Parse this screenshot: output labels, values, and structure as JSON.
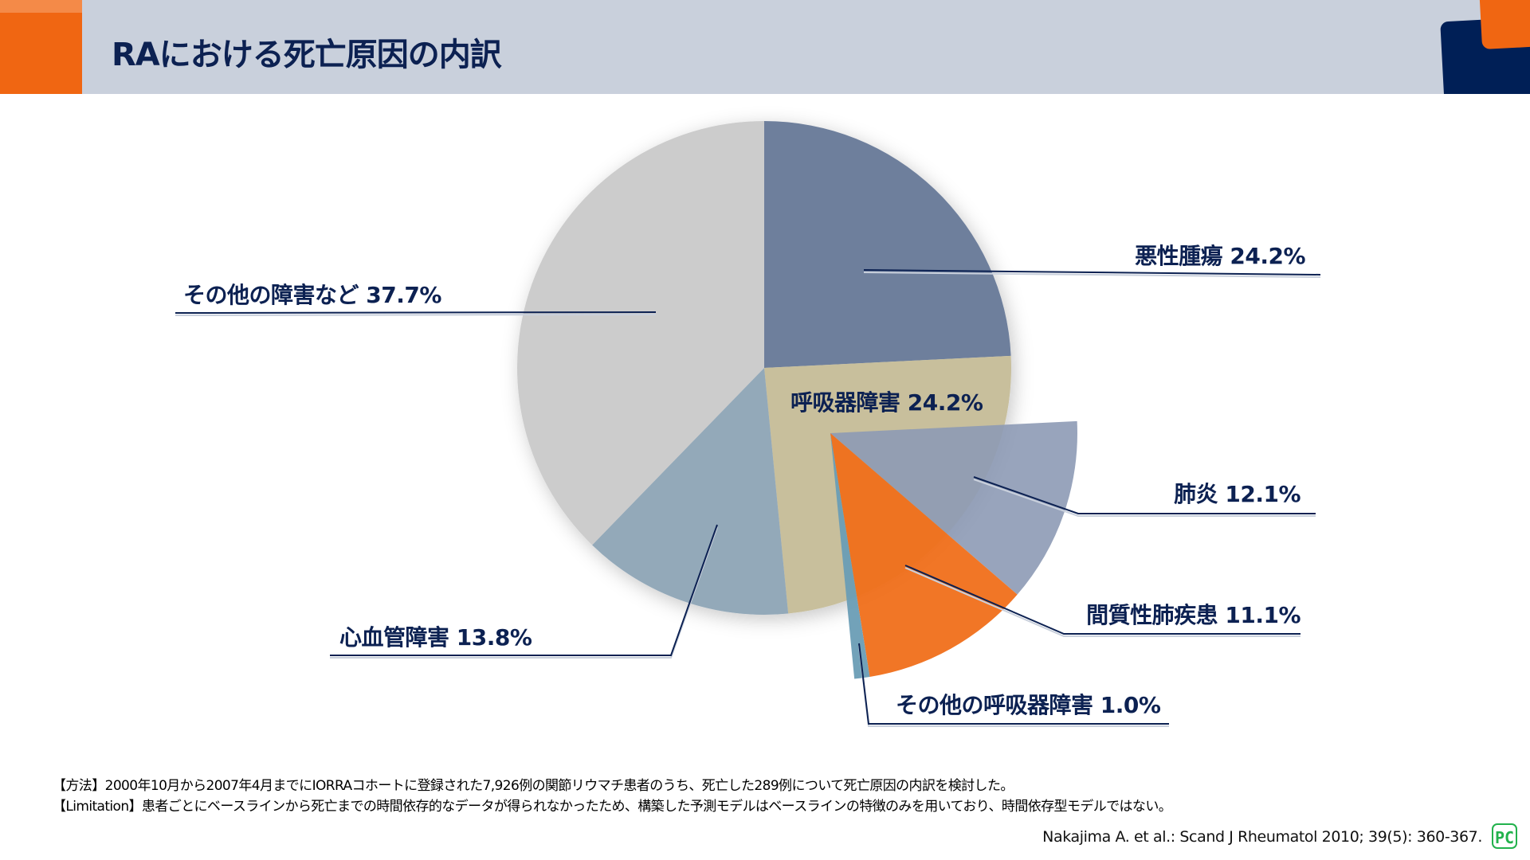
{
  "header": {
    "title": "RAにおける死亡原因の内訳"
  },
  "chart_data": {
    "type": "pie",
    "title": "RAにおける死亡原因の内訳",
    "slices": [
      {
        "label": "悪性腫瘍",
        "value": 24.2,
        "display": "悪性腫瘍 24.2%",
        "color": "#6e7f9c"
      },
      {
        "label": "呼吸器障害",
        "value": 24.2,
        "display": "呼吸器障害 24.2%",
        "color": "#c8bf9c"
      },
      {
        "label": "心血管障害",
        "value": 13.8,
        "display": "心血管障害 13.8%",
        "color": "#93a9b9"
      },
      {
        "label": "その他の障害など",
        "value": 37.7,
        "display": "その他の障害など 37.7%",
        "color": "#cccccc"
      }
    ],
    "breakdown_of": "呼吸器障害",
    "sub_slices": [
      {
        "label": "肺炎",
        "value": 12.1,
        "display": "肺炎 12.1%",
        "color": "#8d9ab5"
      },
      {
        "label": "間質性肺疾患",
        "value": 11.1,
        "display": "間質性肺疾患 11.1%",
        "color": "#f06f1a"
      },
      {
        "label": "その他の呼吸器障害",
        "value": 1.0,
        "display": "その他の呼吸器障害 1.0%",
        "color": "#6a9db5"
      }
    ]
  },
  "footer": {
    "method": "【方法】2000年10月から2007年4月までにIORRAコホートに登録された7,926例の関節リウマチ患者のうち、死亡した289例について死亡原因の内訳を検討した。",
    "limitation": "【Limitation】患者ごとにベースラインから死亡までの時間依存的なデータが得られなかったため、構築した予測モデルはベースラインの特徴のみを用いており、時間依存型モデルではない。",
    "citation": "Nakajima A. et al.: Scand J Rheumatol 2010; 39(5): 360-367.",
    "logo_text": "PC"
  }
}
